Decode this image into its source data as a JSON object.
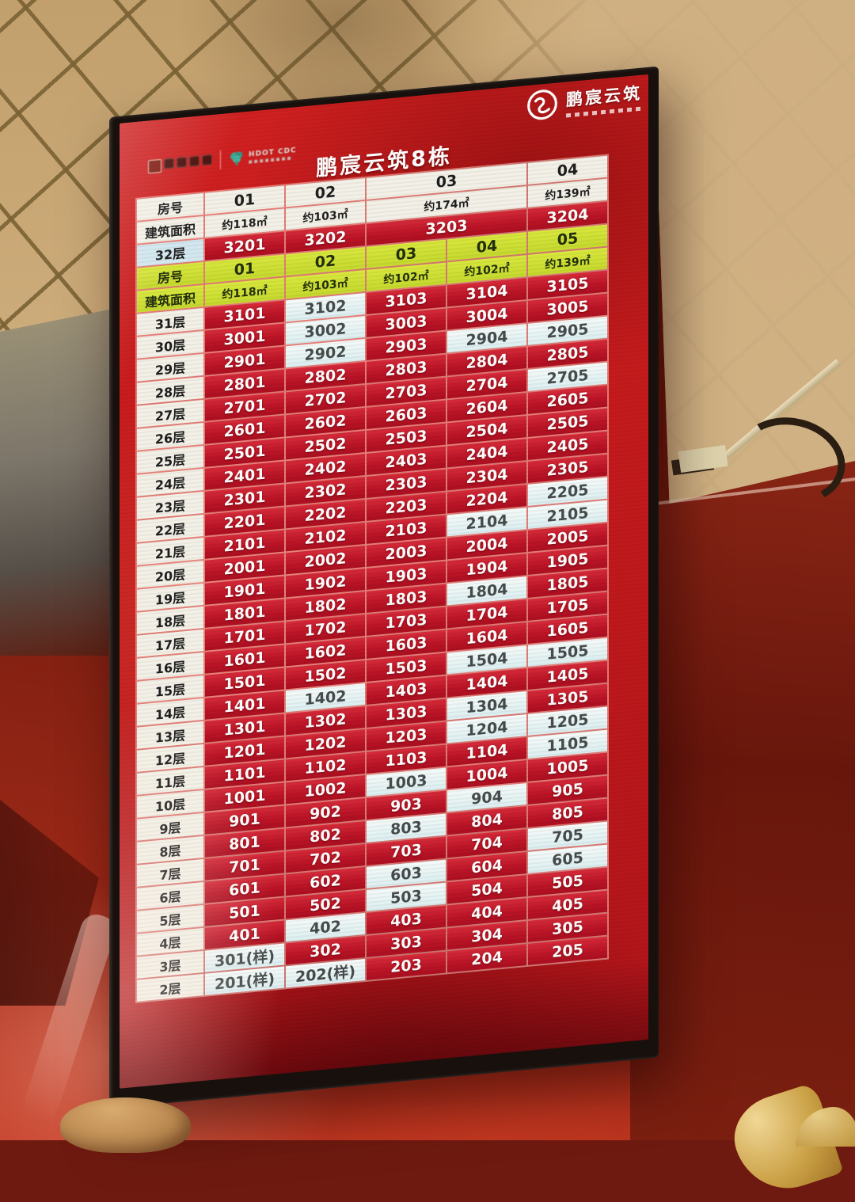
{
  "screen": {
    "title": "鹏宸云筑8栋",
    "logos": {
      "right_brand_text": "鹏宸云筑",
      "partner_teal_line1": "HDOT CDC"
    },
    "board": {
      "top_block": {
        "room_no_label": "房号",
        "area_label": "建筑面积",
        "floor_label": "32层",
        "columns": [
          {
            "no": "01",
            "area": "约118㎡",
            "unit": "3201",
            "state": "red"
          },
          {
            "no": "02",
            "area": "约103㎡",
            "unit": "3202",
            "state": "red"
          },
          {
            "no": "03",
            "area": "约174㎡",
            "unit": "3203",
            "state": "red",
            "double_width": true
          },
          {
            "no": "04",
            "area": "约139㎡",
            "unit": "3204",
            "state": "red"
          }
        ]
      },
      "mid_block": {
        "room_no_label": "房号",
        "area_label": "建筑面积",
        "columns": [
          {
            "no": "01",
            "area": "约118㎡"
          },
          {
            "no": "02",
            "area": "约103㎡"
          },
          {
            "no": "03",
            "area": "约102㎡"
          },
          {
            "no": "04",
            "area": "约102㎡"
          },
          {
            "no": "05",
            "area": "约139㎡"
          }
        ]
      },
      "floors": [
        {
          "label": "31层",
          "units": [
            [
              "3101",
              "red"
            ],
            [
              "3102",
              "white"
            ],
            [
              "3103",
              "red"
            ],
            [
              "3104",
              "red"
            ],
            [
              "3105",
              "red"
            ]
          ]
        },
        {
          "label": "30层",
          "units": [
            [
              "3001",
              "red"
            ],
            [
              "3002",
              "white"
            ],
            [
              "3003",
              "red"
            ],
            [
              "3004",
              "red"
            ],
            [
              "3005",
              "red"
            ]
          ]
        },
        {
          "label": "29层",
          "units": [
            [
              "2901",
              "red"
            ],
            [
              "2902",
              "white"
            ],
            [
              "2903",
              "red"
            ],
            [
              "2904",
              "white"
            ],
            [
              "2905",
              "white"
            ]
          ]
        },
        {
          "label": "28层",
          "units": [
            [
              "2801",
              "red"
            ],
            [
              "2802",
              "red"
            ],
            [
              "2803",
              "red"
            ],
            [
              "2804",
              "red"
            ],
            [
              "2805",
              "red"
            ]
          ]
        },
        {
          "label": "27层",
          "units": [
            [
              "2701",
              "red"
            ],
            [
              "2702",
              "red"
            ],
            [
              "2703",
              "red"
            ],
            [
              "2704",
              "red"
            ],
            [
              "2705",
              "white"
            ]
          ]
        },
        {
          "label": "26层",
          "units": [
            [
              "2601",
              "red"
            ],
            [
              "2602",
              "red"
            ],
            [
              "2603",
              "red"
            ],
            [
              "2604",
              "red"
            ],
            [
              "2605",
              "red"
            ]
          ]
        },
        {
          "label": "25层",
          "units": [
            [
              "2501",
              "red"
            ],
            [
              "2502",
              "red"
            ],
            [
              "2503",
              "red"
            ],
            [
              "2504",
              "red"
            ],
            [
              "2505",
              "red"
            ]
          ]
        },
        {
          "label": "24层",
          "units": [
            [
              "2401",
              "red"
            ],
            [
              "2402",
              "red"
            ],
            [
              "2403",
              "red"
            ],
            [
              "2404",
              "red"
            ],
            [
              "2405",
              "red"
            ]
          ]
        },
        {
          "label": "23层",
          "units": [
            [
              "2301",
              "red"
            ],
            [
              "2302",
              "red"
            ],
            [
              "2303",
              "red"
            ],
            [
              "2304",
              "red"
            ],
            [
              "2305",
              "red"
            ]
          ]
        },
        {
          "label": "22层",
          "units": [
            [
              "2201",
              "red"
            ],
            [
              "2202",
              "red"
            ],
            [
              "2203",
              "red"
            ],
            [
              "2204",
              "red"
            ],
            [
              "2205",
              "white"
            ]
          ]
        },
        {
          "label": "21层",
          "units": [
            [
              "2101",
              "red"
            ],
            [
              "2102",
              "red"
            ],
            [
              "2103",
              "red"
            ],
            [
              "2104",
              "white"
            ],
            [
              "2105",
              "white"
            ]
          ]
        },
        {
          "label": "20层",
          "units": [
            [
              "2001",
              "red"
            ],
            [
              "2002",
              "red"
            ],
            [
              "2003",
              "red"
            ],
            [
              "2004",
              "red"
            ],
            [
              "2005",
              "red"
            ]
          ]
        },
        {
          "label": "19层",
          "units": [
            [
              "1901",
              "red"
            ],
            [
              "1902",
              "red"
            ],
            [
              "1903",
              "red"
            ],
            [
              "1904",
              "red"
            ],
            [
              "1905",
              "red"
            ]
          ]
        },
        {
          "label": "18层",
          "units": [
            [
              "1801",
              "red"
            ],
            [
              "1802",
              "red"
            ],
            [
              "1803",
              "red"
            ],
            [
              "1804",
              "white"
            ],
            [
              "1805",
              "red"
            ]
          ]
        },
        {
          "label": "17层",
          "units": [
            [
              "1701",
              "red"
            ],
            [
              "1702",
              "red"
            ],
            [
              "1703",
              "red"
            ],
            [
              "1704",
              "red"
            ],
            [
              "1705",
              "red"
            ]
          ]
        },
        {
          "label": "16层",
          "units": [
            [
              "1601",
              "red"
            ],
            [
              "1602",
              "red"
            ],
            [
              "1603",
              "red"
            ],
            [
              "1604",
              "red"
            ],
            [
              "1605",
              "red"
            ]
          ]
        },
        {
          "label": "15层",
          "units": [
            [
              "1501",
              "red"
            ],
            [
              "1502",
              "red"
            ],
            [
              "1503",
              "red"
            ],
            [
              "1504",
              "white"
            ],
            [
              "1505",
              "white"
            ]
          ]
        },
        {
          "label": "14层",
          "units": [
            [
              "1401",
              "red"
            ],
            [
              "1402",
              "white"
            ],
            [
              "1403",
              "red"
            ],
            [
              "1404",
              "red"
            ],
            [
              "1405",
              "red"
            ]
          ]
        },
        {
          "label": "13层",
          "units": [
            [
              "1301",
              "red"
            ],
            [
              "1302",
              "red"
            ],
            [
              "1303",
              "red"
            ],
            [
              "1304",
              "white"
            ],
            [
              "1305",
              "red"
            ]
          ]
        },
        {
          "label": "12层",
          "units": [
            [
              "1201",
              "red"
            ],
            [
              "1202",
              "red"
            ],
            [
              "1203",
              "red"
            ],
            [
              "1204",
              "white"
            ],
            [
              "1205",
              "white"
            ]
          ]
        },
        {
          "label": "11层",
          "units": [
            [
              "1101",
              "red"
            ],
            [
              "1102",
              "red"
            ],
            [
              "1103",
              "red"
            ],
            [
              "1104",
              "red"
            ],
            [
              "1105",
              "white"
            ]
          ]
        },
        {
          "label": "10层",
          "units": [
            [
              "1001",
              "red"
            ],
            [
              "1002",
              "red"
            ],
            [
              "1003",
              "white"
            ],
            [
              "1004",
              "red"
            ],
            [
              "1005",
              "red"
            ]
          ]
        },
        {
          "label": "9层",
          "units": [
            [
              "901",
              "red"
            ],
            [
              "902",
              "red"
            ],
            [
              "903",
              "red"
            ],
            [
              "904",
              "white"
            ],
            [
              "905",
              "red"
            ]
          ]
        },
        {
          "label": "8层",
          "units": [
            [
              "801",
              "red"
            ],
            [
              "802",
              "red"
            ],
            [
              "803",
              "white"
            ],
            [
              "804",
              "red"
            ],
            [
              "805",
              "red"
            ]
          ]
        },
        {
          "label": "7层",
          "units": [
            [
              "701",
              "red"
            ],
            [
              "702",
              "red"
            ],
            [
              "703",
              "red"
            ],
            [
              "704",
              "red"
            ],
            [
              "705",
              "white"
            ]
          ]
        },
        {
          "label": "6层",
          "units": [
            [
              "601",
              "red"
            ],
            [
              "602",
              "red"
            ],
            [
              "603",
              "white"
            ],
            [
              "604",
              "red"
            ],
            [
              "605",
              "white"
            ]
          ]
        },
        {
          "label": "5层",
          "units": [
            [
              "501",
              "red"
            ],
            [
              "502",
              "red"
            ],
            [
              "503",
              "white"
            ],
            [
              "504",
              "red"
            ],
            [
              "505",
              "red"
            ]
          ]
        },
        {
          "label": "4层",
          "units": [
            [
              "401",
              "red"
            ],
            [
              "402",
              "white"
            ],
            [
              "403",
              "red"
            ],
            [
              "404",
              "red"
            ],
            [
              "405",
              "red"
            ]
          ]
        },
        {
          "label": "3层",
          "units": [
            [
              "301(样)",
              "white"
            ],
            [
              "302",
              "red"
            ],
            [
              "303",
              "red"
            ],
            [
              "304",
              "red"
            ],
            [
              "305",
              "red"
            ]
          ]
        },
        {
          "label": "2层",
          "units": [
            [
              "201(样)",
              "white"
            ],
            [
              "202(样)",
              "white"
            ],
            [
              "203",
              "red"
            ],
            [
              "204",
              "red"
            ],
            [
              "205",
              "red"
            ]
          ]
        }
      ],
      "colors": {
        "cell_red": "#bc1527",
        "cell_white": "#e6f2f0",
        "header_white": "#f3f1e7",
        "header_yellow": "#cfe03c",
        "floor32_label_blue": "#d2e7ef",
        "screen_red": "#c31a1c"
      }
    }
  }
}
